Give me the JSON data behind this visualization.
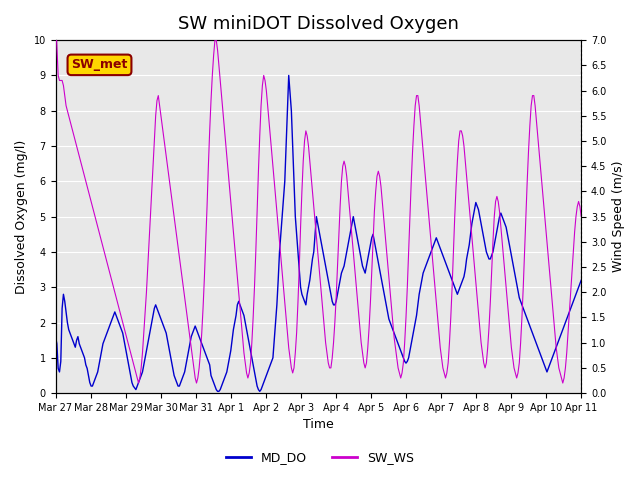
{
  "title": "SW miniDOT Dissolved Oxygen",
  "xlabel": "Time",
  "ylabel_left": "Dissolved Oxygen (mg/l)",
  "ylabel_right": "Wind Speed (m/s)",
  "annotation_text": "SW_met",
  "annotation_color": "#8B0000",
  "annotation_bg": "#FFD700",
  "ylim_left": [
    0,
    10.0
  ],
  "ylim_right": [
    0.0,
    7.0
  ],
  "yticks_left": [
    0.0,
    1.0,
    2.0,
    3.0,
    4.0,
    5.0,
    6.0,
    7.0,
    8.0,
    9.0,
    10.0
  ],
  "yticks_right": [
    0.0,
    0.5,
    1.0,
    1.5,
    2.0,
    2.5,
    3.0,
    3.5,
    4.0,
    4.5,
    5.0,
    5.5,
    6.0,
    6.5,
    7.0
  ],
  "line_do_color": "#0000CD",
  "line_ws_color": "#CC00CC",
  "legend_labels": [
    "MD_DO",
    "SW_WS"
  ],
  "bg_color": "#E8E8E8",
  "fig_bg_color": "#FFFFFF",
  "grid_color": "#FFFFFF",
  "title_fontsize": 13,
  "label_fontsize": 9,
  "tick_fontsize": 7,
  "legend_fontsize": 9,
  "n_days": 15,
  "x_tick_labels": [
    "Mar 27",
    "Mar 28",
    "Mar 29",
    "Mar 30",
    "Mar 31",
    "Apr 1",
    "Apr 2",
    "Apr 3",
    "Apr 4",
    "Apr 5",
    "Apr 6",
    "Apr 7",
    "Apr 8",
    "Apr 9",
    "Apr 10",
    "Apr 11"
  ],
  "do_data": [
    1.6,
    1.4,
    0.7,
    0.6,
    0.9,
    2.4,
    2.8,
    2.6,
    2.3,
    2.0,
    1.8,
    1.7,
    1.6,
    1.5,
    1.4,
    1.3,
    1.5,
    1.6,
    1.4,
    1.3,
    1.2,
    1.1,
    1.0,
    0.8,
    0.7,
    0.5,
    0.3,
    0.2,
    0.2,
    0.3,
    0.4,
    0.5,
    0.6,
    0.8,
    1.0,
    1.2,
    1.4,
    1.5,
    1.6,
    1.7,
    1.8,
    1.9,
    2.0,
    2.1,
    2.2,
    2.3,
    2.2,
    2.1,
    2.0,
    1.9,
    1.8,
    1.7,
    1.5,
    1.3,
    1.1,
    0.9,
    0.7,
    0.5,
    0.3,
    0.2,
    0.15,
    0.1,
    0.2,
    0.3,
    0.4,
    0.5,
    0.6,
    0.8,
    1.0,
    1.2,
    1.4,
    1.6,
    1.8,
    2.0,
    2.2,
    2.4,
    2.5,
    2.4,
    2.3,
    2.2,
    2.1,
    2.0,
    1.9,
    1.8,
    1.7,
    1.5,
    1.3,
    1.1,
    0.9,
    0.7,
    0.5,
    0.4,
    0.3,
    0.2,
    0.2,
    0.3,
    0.4,
    0.5,
    0.6,
    0.8,
    1.0,
    1.2,
    1.4,
    1.6,
    1.7,
    1.8,
    1.9,
    1.8,
    1.7,
    1.6,
    1.5,
    1.4,
    1.3,
    1.2,
    1.1,
    1.0,
    0.9,
    0.8,
    0.5,
    0.4,
    0.3,
    0.2,
    0.1,
    0.05,
    0.05,
    0.1,
    0.2,
    0.3,
    0.4,
    0.5,
    0.6,
    0.8,
    1.0,
    1.2,
    1.5,
    1.8,
    2.0,
    2.2,
    2.5,
    2.6,
    2.5,
    2.4,
    2.3,
    2.2,
    2.0,
    1.8,
    1.6,
    1.4,
    1.2,
    1.0,
    0.8,
    0.6,
    0.4,
    0.2,
    0.1,
    0.05,
    0.1,
    0.2,
    0.3,
    0.4,
    0.5,
    0.6,
    0.7,
    0.8,
    0.9,
    1.0,
    1.5,
    2.0,
    2.5,
    3.2,
    4.0,
    4.5,
    5.0,
    5.5,
    6.0,
    7.0,
    8.0,
    9.0,
    8.5,
    8.0,
    7.0,
    6.0,
    5.0,
    4.5,
    4.0,
    3.5,
    3.0,
    2.8,
    2.7,
    2.6,
    2.5,
    2.8,
    3.0,
    3.2,
    3.5,
    3.8,
    4.0,
    4.5,
    5.0,
    4.8,
    4.6,
    4.4,
    4.2,
    4.0,
    3.8,
    3.6,
    3.4,
    3.2,
    3.0,
    2.8,
    2.6,
    2.5,
    2.5,
    2.6,
    2.8,
    3.0,
    3.2,
    3.4,
    3.5,
    3.6,
    3.8,
    4.0,
    4.2,
    4.4,
    4.6,
    4.8,
    5.0,
    4.8,
    4.6,
    4.4,
    4.2,
    4.0,
    3.8,
    3.6,
    3.5,
    3.4,
    3.6,
    3.8,
    4.0,
    4.2,
    4.4,
    4.5,
    4.3,
    4.1,
    3.9,
    3.7,
    3.5,
    3.3,
    3.1,
    2.9,
    2.7,
    2.5,
    2.3,
    2.1,
    2.0,
    1.9,
    1.8,
    1.7,
    1.6,
    1.5,
    1.4,
    1.3,
    1.2,
    1.1,
    1.0,
    0.9,
    0.85,
    0.9,
    1.0,
    1.2,
    1.4,
    1.6,
    1.8,
    2.0,
    2.2,
    2.5,
    2.8,
    3.0,
    3.2,
    3.4,
    3.5,
    3.6,
    3.7,
    3.8,
    3.9,
    4.0,
    4.1,
    4.2,
    4.3,
    4.4,
    4.3,
    4.2,
    4.1,
    4.0,
    3.9,
    3.8,
    3.7,
    3.6,
    3.5,
    3.4,
    3.3,
    3.2,
    3.1,
    3.0,
    2.9,
    2.8,
    2.9,
    3.0,
    3.1,
    3.2,
    3.3,
    3.5,
    3.8,
    4.0,
    4.2,
    4.5,
    4.8,
    5.0,
    5.2,
    5.4,
    5.3,
    5.2,
    5.0,
    4.8,
    4.6,
    4.4,
    4.2,
    4.0,
    3.9,
    3.8,
    3.8,
    3.9,
    4.0,
    4.2,
    4.4,
    4.6,
    4.8,
    5.0,
    5.1,
    5.0,
    4.9,
    4.8,
    4.7,
    4.5,
    4.3,
    4.1,
    3.9,
    3.7,
    3.5,
    3.3,
    3.1,
    2.9,
    2.7,
    2.6,
    2.5,
    2.4,
    2.3,
    2.2,
    2.1,
    2.0,
    1.9,
    1.8,
    1.7,
    1.6,
    1.5,
    1.4,
    1.3,
    1.2,
    1.1,
    1.0,
    0.9,
    0.8,
    0.7,
    0.6,
    0.7,
    0.8,
    0.9,
    1.0,
    1.1,
    1.2,
    1.3,
    1.4,
    1.5,
    1.6,
    1.7,
    1.8,
    1.9,
    2.0,
    2.1,
    2.2,
    2.3,
    2.4,
    2.5,
    2.6,
    2.7,
    2.8,
    2.9,
    3.0,
    3.1,
    3.2
  ],
  "ws_data": [
    7.4,
    6.9,
    6.3,
    6.2,
    6.2,
    6.2,
    6.1,
    5.9,
    5.7,
    5.6,
    5.5,
    5.4,
    5.3,
    5.2,
    5.1,
    5.0,
    4.9,
    4.8,
    4.7,
    4.6,
    4.5,
    4.4,
    4.3,
    4.2,
    4.1,
    4.0,
    3.9,
    3.8,
    3.7,
    3.6,
    3.5,
    3.4,
    3.3,
    3.2,
    3.1,
    3.0,
    2.9,
    2.8,
    2.7,
    2.6,
    2.5,
    2.4,
    2.3,
    2.2,
    2.1,
    2.0,
    1.9,
    1.8,
    1.7,
    1.6,
    1.5,
    1.4,
    1.3,
    1.2,
    1.1,
    1.0,
    0.9,
    0.8,
    0.7,
    0.6,
    0.5,
    0.4,
    0.3,
    0.2,
    0.3,
    0.5,
    0.8,
    1.2,
    1.6,
    2.0,
    2.5,
    3.0,
    3.5,
    4.0,
    4.5,
    5.0,
    5.5,
    5.8,
    5.9,
    5.7,
    5.5,
    5.3,
    5.1,
    4.9,
    4.7,
    4.5,
    4.3,
    4.1,
    3.9,
    3.7,
    3.5,
    3.3,
    3.1,
    2.9,
    2.7,
    2.5,
    2.3,
    2.1,
    1.9,
    1.7,
    1.5,
    1.3,
    1.1,
    0.9,
    0.7,
    0.5,
    0.3,
    0.2,
    0.3,
    0.5,
    0.8,
    1.2,
    1.7,
    2.3,
    3.0,
    3.7,
    4.5,
    5.2,
    5.8,
    6.3,
    6.7,
    7.0,
    7.0,
    6.8,
    6.5,
    6.2,
    5.9,
    5.6,
    5.3,
    5.0,
    4.7,
    4.4,
    4.1,
    3.8,
    3.5,
    3.2,
    2.9,
    2.6,
    2.3,
    2.0,
    1.7,
    1.4,
    1.1,
    0.8,
    0.6,
    0.4,
    0.3,
    0.4,
    0.6,
    1.0,
    1.5,
    2.1,
    2.8,
    3.6,
    4.4,
    5.1,
    5.7,
    6.1,
    6.3,
    6.2,
    6.0,
    5.7,
    5.4,
    5.1,
    4.8,
    4.5,
    4.2,
    3.9,
    3.6,
    3.3,
    3.0,
    2.7,
    2.4,
    2.1,
    1.8,
    1.5,
    1.2,
    0.9,
    0.7,
    0.5,
    0.4,
    0.5,
    0.8,
    1.2,
    1.8,
    2.5,
    3.3,
    4.0,
    4.6,
    5.0,
    5.2,
    5.1,
    4.9,
    4.6,
    4.3,
    4.0,
    3.7,
    3.4,
    3.1,
    2.8,
    2.5,
    2.2,
    1.9,
    1.6,
    1.3,
    1.0,
    0.8,
    0.6,
    0.5,
    0.5,
    0.7,
    1.0,
    1.4,
    1.9,
    2.5,
    3.1,
    3.7,
    4.2,
    4.5,
    4.6,
    4.5,
    4.3,
    4.0,
    3.7,
    3.4,
    3.1,
    2.8,
    2.5,
    2.2,
    1.9,
    1.6,
    1.3,
    1.0,
    0.8,
    0.6,
    0.5,
    0.6,
    0.9,
    1.3,
    1.8,
    2.4,
    3.0,
    3.6,
    4.0,
    4.3,
    4.4,
    4.3,
    4.1,
    3.8,
    3.5,
    3.2,
    2.9,
    2.6,
    2.3,
    2.0,
    1.7,
    1.4,
    1.1,
    0.9,
    0.7,
    0.5,
    0.4,
    0.3,
    0.4,
    0.6,
    1.0,
    1.5,
    2.1,
    2.8,
    3.5,
    4.2,
    4.8,
    5.3,
    5.7,
    5.9,
    5.9,
    5.7,
    5.4,
    5.1,
    4.8,
    4.5,
    4.2,
    3.9,
    3.6,
    3.3,
    3.0,
    2.7,
    2.4,
    2.1,
    1.8,
    1.5,
    1.2,
    0.9,
    0.7,
    0.5,
    0.4,
    0.3,
    0.4,
    0.6,
    1.0,
    1.5,
    2.1,
    2.8,
    3.5,
    4.1,
    4.6,
    5.0,
    5.2,
    5.2,
    5.1,
    4.9,
    4.6,
    4.3,
    4.0,
    3.7,
    3.4,
    3.1,
    2.8,
    2.5,
    2.2,
    1.9,
    1.6,
    1.3,
    1.0,
    0.8,
    0.6,
    0.5,
    0.6,
    0.9,
    1.3,
    1.8,
    2.4,
    3.0,
    3.5,
    3.8,
    3.9,
    3.8,
    3.6,
    3.3,
    3.0,
    2.7,
    2.4,
    2.1,
    1.8,
    1.5,
    1.2,
    0.9,
    0.7,
    0.5,
    0.4,
    0.3,
    0.4,
    0.6,
    1.0,
    1.5,
    2.1,
    2.8,
    3.5,
    4.2,
    4.8,
    5.3,
    5.7,
    5.9,
    5.9,
    5.7,
    5.4,
    5.1,
    4.8,
    4.5,
    4.2,
    3.9,
    3.6,
    3.3,
    3.0,
    2.7,
    2.4,
    2.1,
    1.8,
    1.5,
    1.2,
    0.9,
    0.7,
    0.5,
    0.4,
    0.3,
    0.2,
    0.3,
    0.5,
    0.8,
    1.2,
    1.6,
    2.0,
    2.4,
    2.8,
    3.2,
    3.5,
    3.7,
    3.8,
    3.7,
    3.5
  ]
}
